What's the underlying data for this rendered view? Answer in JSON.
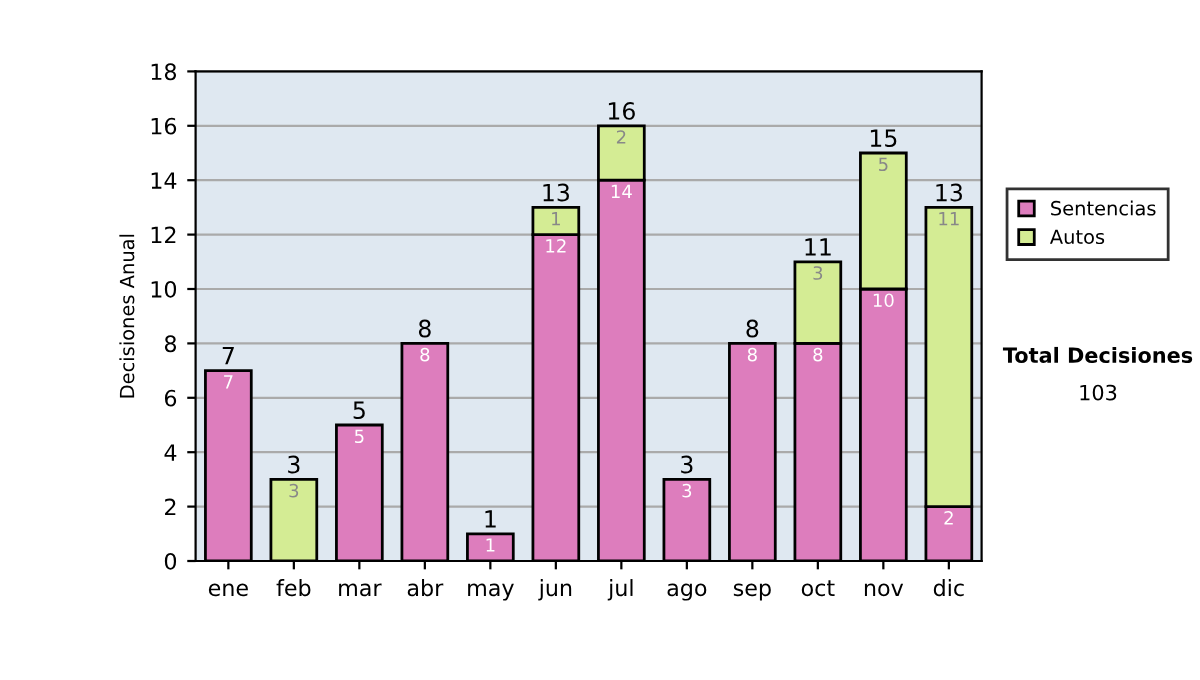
{
  "chart_data": {
    "type": "bar",
    "stacked": true,
    "ylabel": "Decisiones Anual",
    "categories": [
      "ene",
      "feb",
      "mar",
      "abr",
      "may",
      "jun",
      "jul",
      "ago",
      "sep",
      "oct",
      "nov",
      "dic"
    ],
    "series": [
      {
        "name": "Sentencias",
        "color": "#dd7dbd",
        "values": [
          7,
          0,
          5,
          8,
          1,
          12,
          14,
          3,
          8,
          8,
          10,
          2
        ],
        "value_labels": [
          "7",
          null,
          "5",
          "8",
          "1",
          "12",
          "14",
          "3",
          "8",
          "8",
          "10",
          "2"
        ]
      },
      {
        "name": "Autos",
        "color": "#d4ec94",
        "values": [
          0,
          3,
          0,
          0,
          0,
          1,
          2,
          0,
          0,
          3,
          5,
          11
        ],
        "value_labels": [
          null,
          "3",
          null,
          null,
          null,
          "1",
          "2",
          null,
          null,
          "3",
          "5",
          "11"
        ]
      }
    ],
    "totals": [
      "7",
      "3",
      "5",
      "8",
      "1",
      "13",
      "16",
      "3",
      "8",
      "11",
      "15",
      "13"
    ],
    "ylim": [
      0,
      18
    ],
    "yticks": [
      0,
      2,
      4,
      6,
      8,
      10,
      12,
      14,
      16,
      18
    ],
    "grid": "y",
    "legend": "right",
    "annotations": [
      "Total Decisiones",
      "103"
    ]
  }
}
